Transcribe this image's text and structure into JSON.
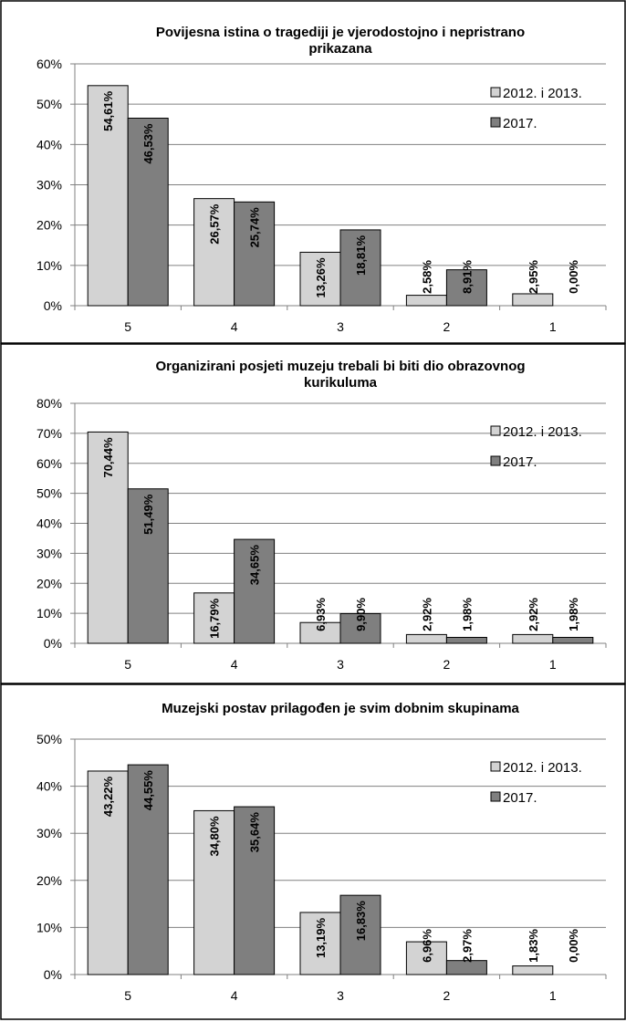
{
  "chart_data": [
    {
      "type": "bar",
      "title": "Povijesna istina o tragediji je vjerodostojno i nepristrano prikazana",
      "title_lines": [
        "Povijesna istina o tragediji je vjerodostojno i nepristrano",
        "prikazana"
      ],
      "categories": [
        "5",
        "4",
        "3",
        "2",
        "1"
      ],
      "series": [
        {
          "name": "2012. i 2013.",
          "values": [
            54.61,
            26.57,
            13.26,
            2.58,
            2.95
          ],
          "labels": [
            "54,61%",
            "26,57%",
            "13,26%",
            "2,58%",
            "2,95%"
          ]
        },
        {
          "name": "2017.",
          "values": [
            46.53,
            25.74,
            18.81,
            8.91,
            0.0
          ],
          "labels": [
            "46,53%",
            "25,74%",
            "18,81%",
            "8,91%",
            "0,00%"
          ]
        }
      ],
      "ylim": [
        0,
        60
      ],
      "yticks": [
        0,
        10,
        20,
        30,
        40,
        50,
        60
      ],
      "ytick_labels": [
        "0%",
        "10%",
        "20%",
        "30%",
        "40%",
        "50%",
        "60%"
      ],
      "xlabel": "",
      "ylabel": "",
      "grid": true,
      "legend": "top-right"
    },
    {
      "type": "bar",
      "title": "Organizirani posjeti muzeju trebali bi biti dio obrazovnog kurikuluma",
      "title_lines": [
        "Organizirani posjeti muzeju trebali bi biti dio obrazovnog",
        "kurikuluma"
      ],
      "categories": [
        "5",
        "4",
        "3",
        "2",
        "1"
      ],
      "series": [
        {
          "name": "2012. i 2013.",
          "values": [
            70.44,
            16.79,
            6.93,
            2.92,
            2.92
          ],
          "labels": [
            "70,44%",
            "16,79%",
            "6,93%",
            "2,92%",
            "2,92%"
          ]
        },
        {
          "name": "2017.",
          "values": [
            51.49,
            34.65,
            9.9,
            1.98,
            1.98
          ],
          "labels": [
            "51,49%",
            "34,65%",
            "9,90%",
            "1,98%",
            "1,98%"
          ]
        }
      ],
      "ylim": [
        0,
        80
      ],
      "yticks": [
        0,
        10,
        20,
        30,
        40,
        50,
        60,
        70,
        80
      ],
      "ytick_labels": [
        "0%",
        "10%",
        "20%",
        "30%",
        "40%",
        "50%",
        "60%",
        "70%",
        "80%"
      ],
      "xlabel": "",
      "ylabel": "",
      "grid": true,
      "legend": "top-right"
    },
    {
      "type": "bar",
      "title": "Muzejski postav prilagođen je svim dobnim skupinama",
      "title_lines": [
        "Muzejski postav prilagođen je svim dobnim skupinama"
      ],
      "categories": [
        "5",
        "4",
        "3",
        "2",
        "1"
      ],
      "series": [
        {
          "name": "2012. i 2013.",
          "values": [
            43.22,
            34.8,
            13.19,
            6.96,
            1.83
          ],
          "labels": [
            "43,22%",
            "34,80%",
            "13,19%",
            "6,96%",
            "1,83%"
          ]
        },
        {
          "name": "2017.",
          "values": [
            44.55,
            35.64,
            16.83,
            2.97,
            0.0
          ],
          "labels": [
            "44,55%",
            "35,64%",
            "16,83%",
            "2,97%",
            "0,00%"
          ]
        }
      ],
      "ylim": [
        0,
        50
      ],
      "yticks": [
        0,
        10,
        20,
        30,
        40,
        50
      ],
      "ytick_labels": [
        "0%",
        "10%",
        "20%",
        "30%",
        "40%",
        "50%"
      ],
      "xlabel": "",
      "ylabel": "",
      "grid": true,
      "legend": "top-right"
    }
  ],
  "colors": {
    "series_1": "#d3d3d3",
    "series_2": "#7f7f7f",
    "grid": "#808080",
    "axis": "#808080",
    "frame": "#000000",
    "text": "#000000"
  }
}
